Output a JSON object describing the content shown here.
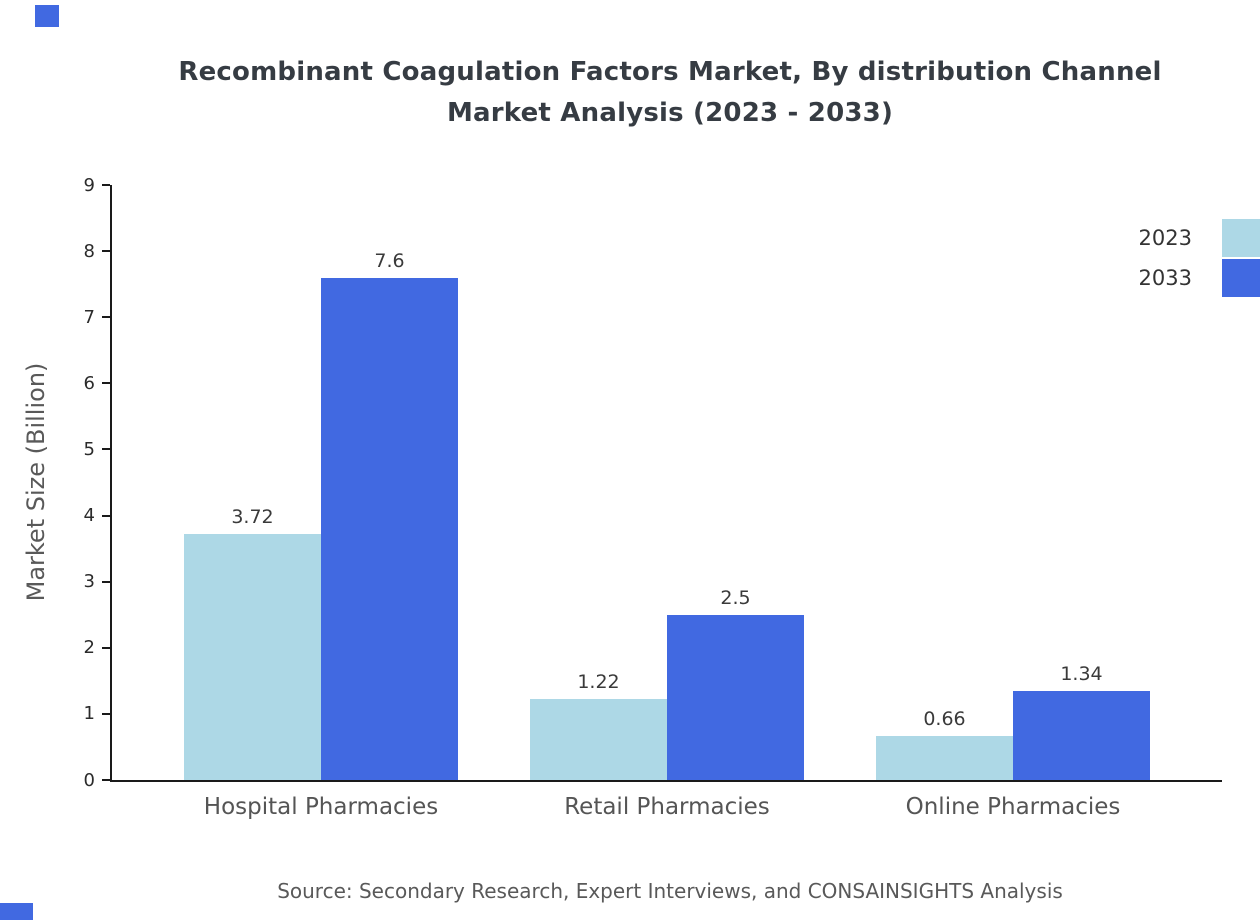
{
  "title": {
    "line1": "Recombinant Coagulation Factors Market, By distribution Channel",
    "line2": "Market Analysis (2023 - 2033)"
  },
  "source": "Source: Secondary Research, Expert Interviews, and CONSAINSIGHTS Analysis",
  "colors": {
    "accent": "#4169e1",
    "series_2023": "#add8e6",
    "series_2033": "#4169e1"
  },
  "chart_data": {
    "type": "bar",
    "title": "Recombinant Coagulation Factors Market, By distribution Channel Market Analysis (2023 - 2033)",
    "categories": [
      "Hospital Pharmacies",
      "Retail Pharmacies",
      "Online Pharmacies"
    ],
    "series": [
      {
        "name": "2023",
        "color": "#add8e6",
        "values": [
          3.72,
          1.22,
          0.66
        ]
      },
      {
        "name": "2033",
        "color": "#4169e1",
        "values": [
          7.6,
          2.5,
          1.34
        ]
      }
    ],
    "xlabel": "",
    "ylabel": "Market Size (Billion)",
    "ylim": [
      0,
      9
    ],
    "yticks": [
      0,
      1,
      2,
      3,
      4,
      5,
      6,
      7,
      8,
      9
    ],
    "grid": false,
    "legend_position": "top-right"
  }
}
